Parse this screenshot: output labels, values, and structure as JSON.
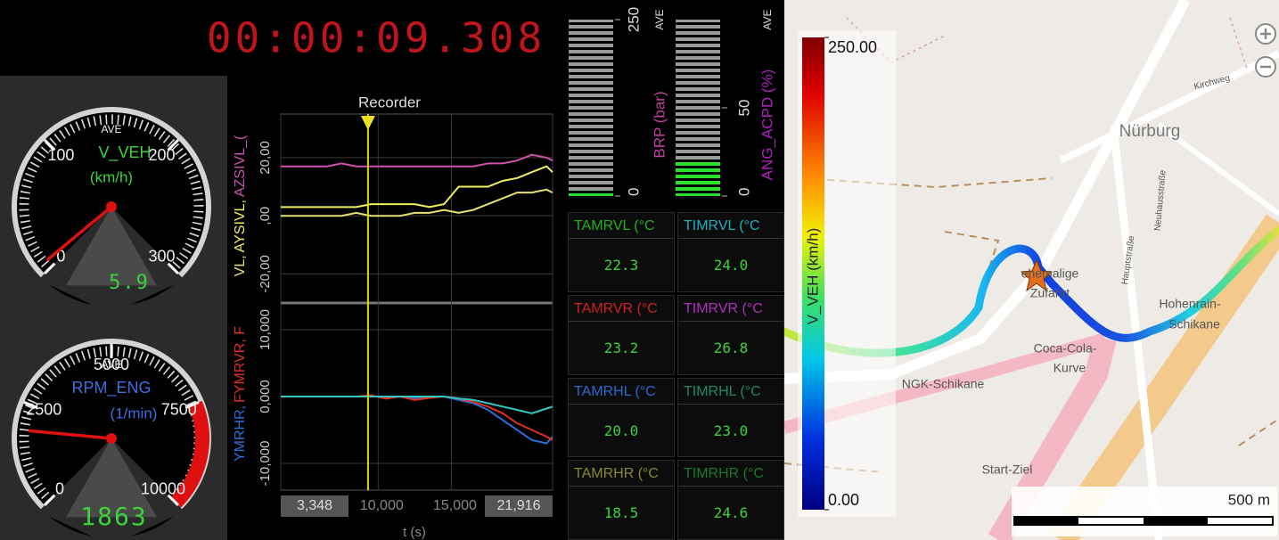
{
  "timer": "00:00:09.308",
  "gauges": [
    {
      "name": "V_VEH",
      "unit": "(km/h)",
      "stat": "AVE",
      "range": [
        0,
        300
      ],
      "ticks": [
        0,
        100,
        200,
        300
      ],
      "value": 5.9
    },
    {
      "name": "RPM_ENG",
      "unit": "(1/min)",
      "stat": "AVE",
      "range": [
        0,
        10000
      ],
      "ticks": [
        0,
        2500,
        5000,
        7500,
        10000
      ],
      "red_zone": [
        7500,
        10000
      ],
      "value": 1863
    }
  ],
  "meters": [
    {
      "label": "BRP (bar)",
      "stat": "AVE",
      "range": [
        0,
        250
      ],
      "ticks": [
        0,
        250
      ],
      "value": 8,
      "color": "#c040a0"
    },
    {
      "label": "ANG_ACPD (%)",
      "stat": "AVE",
      "range": [
        0,
        100
      ],
      "ticks": [
        0,
        50
      ],
      "value": 20,
      "color": "#b020c0"
    }
  ],
  "recorder": {
    "title": "Recorder",
    "x_label": "t (s)",
    "xlim": [
      3.348,
      21.916
    ],
    "xticks": [
      {
        "value": 3.348,
        "label": "3,348"
      },
      {
        "value": 10,
        "label": "10,000"
      },
      {
        "value": 15,
        "label": "15,000"
      },
      {
        "value": 21.916,
        "label": "21,916"
      }
    ],
    "cursor": 9.308,
    "x": [
      3.348,
      4.5,
      5.5,
      6.5,
      7.5,
      8.5,
      9.5,
      10.5,
      11.5,
      12.5,
      13.5,
      14.5,
      15.5,
      16.5,
      17.5,
      18.5,
      19.5,
      20.5,
      21.5,
      21.916
    ],
    "panes": [
      {
        "ylim": [
          -30,
          35
        ],
        "yticks": [
          {
            "value": -20,
            "label": "-20,00"
          },
          {
            "value": 0,
            "label": ",00"
          },
          {
            "value": 20,
            "label": "20,00"
          }
        ],
        "series": [
          {
            "name": "VL,",
            "color": "#e8e070",
            "values": [
              0,
              0,
              0,
              0,
              0,
              1,
              0,
              0,
              0,
              1,
              1,
              2,
              1,
              2,
              4,
              6,
              8,
              8,
              9,
              8
            ]
          },
          {
            "name": "AYSIVL,",
            "color": "#f0f060",
            "values": [
              3,
              3,
              3,
              3,
              3,
              3,
              4,
              4,
              4,
              4,
              3,
              4,
              10,
              10,
              10,
              12,
              13,
              15,
              17,
              15
            ]
          },
          {
            "name": "AZSIVL_(",
            "color": "#d050b0",
            "values": [
              17,
              17,
              17,
              17,
              18,
              17,
              17,
              17,
              17,
              17,
              17,
              17,
              17,
              17,
              18,
              18,
              19,
              21,
              20,
              19
            ]
          }
        ]
      },
      {
        "ylim": [
          -14000,
          14000
        ],
        "yticks": [
          {
            "value": -10000,
            "label": "-10,000"
          },
          {
            "value": 0,
            "label": "0,000"
          },
          {
            "value": 10000,
            "label": "10,000"
          }
        ],
        "series": [
          {
            "name": "YMRHR,",
            "color": "#2a70d8",
            "values": [
              0,
              0,
              0,
              0,
              0,
              0,
              0,
              0,
              0,
              -300,
              0,
              0,
              -500,
              -1000,
              -2000,
              -3500,
              -5000,
              -6500,
              -7000,
              -6000
            ]
          },
          {
            "name": "FYMRVR, F",
            "color": "#e03020",
            "values": [
              0,
              0,
              0,
              0,
              0,
              0,
              200,
              -300,
              0,
              -500,
              -200,
              0,
              -300,
              -800,
              -1500,
              -2500,
              -4000,
              -5000,
              -6000,
              -6500
            ]
          },
          {
            "color": "#30c8c0",
            "values": [
              0,
              0,
              0,
              0,
              0,
              0,
              0,
              0,
              0,
              0,
              0,
              0,
              -300,
              -500,
              -1000,
              -1500,
              -2000,
              -2500,
              -1800,
              -1500
            ]
          }
        ]
      }
    ]
  },
  "table": {
    "cells": [
      {
        "header": "TAMRVL (°C",
        "value": "22.3",
        "color": "#22b022"
      },
      {
        "header": "TIMRVL (°C",
        "value": "24.0",
        "color": "#20b0c0"
      },
      {
        "header": "TAMRVR (°C",
        "value": "23.2",
        "color": "#d02020"
      },
      {
        "header": "TIMRVR (°C",
        "value": "26.8",
        "color": "#b030c0"
      },
      {
        "header": "TAMRHL (°C",
        "value": "20.0",
        "color": "#2a6ad0"
      },
      {
        "header": "TIMRHL (°C",
        "value": "23.0",
        "color": "#1a8a60"
      },
      {
        "header": "TAMRHR (°C",
        "value": "18.5",
        "color": "#8a8a30"
      },
      {
        "header": "TIMRHR (°C",
        "value": "24.6",
        "color": "#1a7a30"
      }
    ]
  },
  "map": {
    "colorbar": {
      "label": "V_VEH (km/h)",
      "range": [
        0,
        250
      ],
      "ticks": [
        {
          "value": 0,
          "label": "0.00"
        },
        {
          "value": 250,
          "label": "250.00"
        }
      ]
    },
    "labels": [
      "Nürburg",
      "Kirchweg",
      "Hauptstraße",
      "Neuhausstraße",
      "ehemalige",
      "Zufahrt",
      "Hohenrain-",
      "Schikane",
      "Coca-Cola-",
      "Kurve",
      "NGK-Schikane",
      "Start-Ziel"
    ],
    "scale": "500 m"
  }
}
